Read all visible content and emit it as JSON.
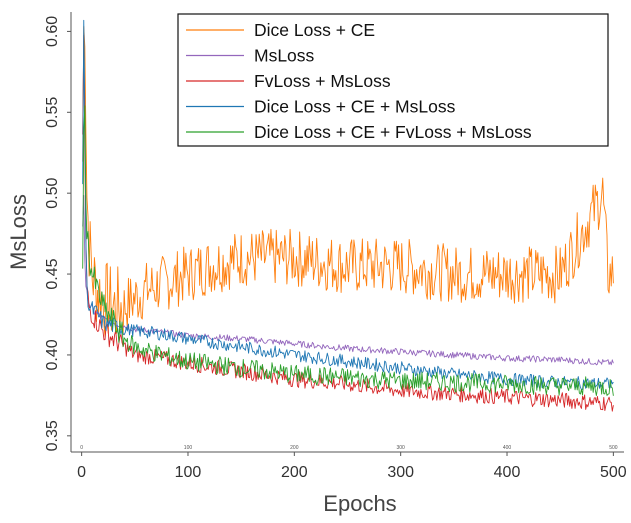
{
  "chart_data": {
    "type": "line",
    "title": "",
    "xlabel": "Epochs",
    "ylabel": "MsLoss",
    "xlim": [
      -10,
      510
    ],
    "ylim": [
      0.34,
      0.612
    ],
    "x_ticks": [
      0,
      100,
      200,
      300,
      400,
      500
    ],
    "x_tick_labels": [
      "0",
      "100",
      "200",
      "300",
      "400",
      "500"
    ],
    "x_minor_marks": [
      "0",
      "100",
      "200",
      "300",
      "400",
      "500"
    ],
    "y_ticks": [
      0.35,
      0.4,
      0.45,
      0.5,
      0.55,
      0.6
    ],
    "y_tick_labels": [
      "0.35",
      "0.40",
      "0.45",
      "0.50",
      "0.55",
      "0.60"
    ],
    "grid": false,
    "legend_position": "top-right",
    "series": [
      {
        "name": "Dice Loss + CE",
        "color": "#ff7f0e",
        "x": [
          1,
          2,
          3,
          4,
          5,
          7,
          10,
          15,
          20,
          30,
          40,
          50,
          60,
          80,
          100,
          120,
          150,
          200,
          250,
          300,
          350,
          400,
          450,
          490,
          495,
          500
        ],
        "y": [
          0.52,
          0.6,
          0.61,
          0.55,
          0.5,
          0.47,
          0.45,
          0.44,
          0.435,
          0.43,
          0.43,
          0.435,
          0.44,
          0.445,
          0.45,
          0.455,
          0.46,
          0.46,
          0.455,
          0.455,
          0.45,
          0.45,
          0.45,
          0.5,
          0.45,
          0.45
        ],
        "noise": 0.018
      },
      {
        "name": "MsLoss",
        "color": "#9467bd",
        "x": [
          1,
          2,
          3,
          4,
          6,
          8,
          10,
          15,
          20,
          30,
          40,
          50,
          75,
          100,
          150,
          200,
          250,
          300,
          350,
          400,
          450,
          500
        ],
        "y": [
          0.48,
          0.5,
          0.46,
          0.44,
          0.435,
          0.43,
          0.428,
          0.425,
          0.422,
          0.42,
          0.418,
          0.416,
          0.414,
          0.412,
          0.41,
          0.407,
          0.404,
          0.402,
          0.4,
          0.398,
          0.397,
          0.395
        ],
        "noise": 0.002
      },
      {
        "name": "FvLoss + MsLoss",
        "color": "#d62728",
        "x": [
          1,
          2,
          3,
          4,
          5,
          7,
          10,
          15,
          20,
          30,
          40,
          50,
          75,
          100,
          150,
          200,
          250,
          300,
          350,
          400,
          450,
          500
        ],
        "y": [
          0.53,
          0.6,
          0.52,
          0.47,
          0.44,
          0.43,
          0.425,
          0.42,
          0.415,
          0.41,
          0.405,
          0.4,
          0.398,
          0.395,
          0.39,
          0.385,
          0.382,
          0.378,
          0.376,
          0.374,
          0.372,
          0.37
        ],
        "noise": 0.005
      },
      {
        "name": "Dice Loss + CE + MsLoss",
        "color": "#1f77b4",
        "x": [
          1,
          2,
          3,
          4,
          5,
          7,
          10,
          15,
          20,
          30,
          40,
          50,
          75,
          100,
          150,
          200,
          250,
          300,
          350,
          400,
          450,
          500
        ],
        "y": [
          0.5,
          0.61,
          0.55,
          0.47,
          0.44,
          0.43,
          0.428,
          0.425,
          0.42,
          0.418,
          0.416,
          0.415,
          0.413,
          0.41,
          0.405,
          0.4,
          0.396,
          0.392,
          0.388,
          0.385,
          0.383,
          0.382
        ],
        "noise": 0.004
      },
      {
        "name": "Dice Loss + CE + FvLoss + MsLoss",
        "color": "#2ca02c",
        "x": [
          1,
          2,
          3,
          4,
          5,
          7,
          10,
          15,
          20,
          30,
          40,
          50,
          75,
          100,
          150,
          200,
          250,
          300,
          350,
          400,
          450,
          500
        ],
        "y": [
          0.46,
          0.53,
          0.55,
          0.5,
          0.48,
          0.46,
          0.45,
          0.44,
          0.43,
          0.42,
          0.41,
          0.405,
          0.4,
          0.396,
          0.392,
          0.388,
          0.386,
          0.384,
          0.383,
          0.382,
          0.381,
          0.38
        ],
        "noise": 0.006
      }
    ]
  }
}
